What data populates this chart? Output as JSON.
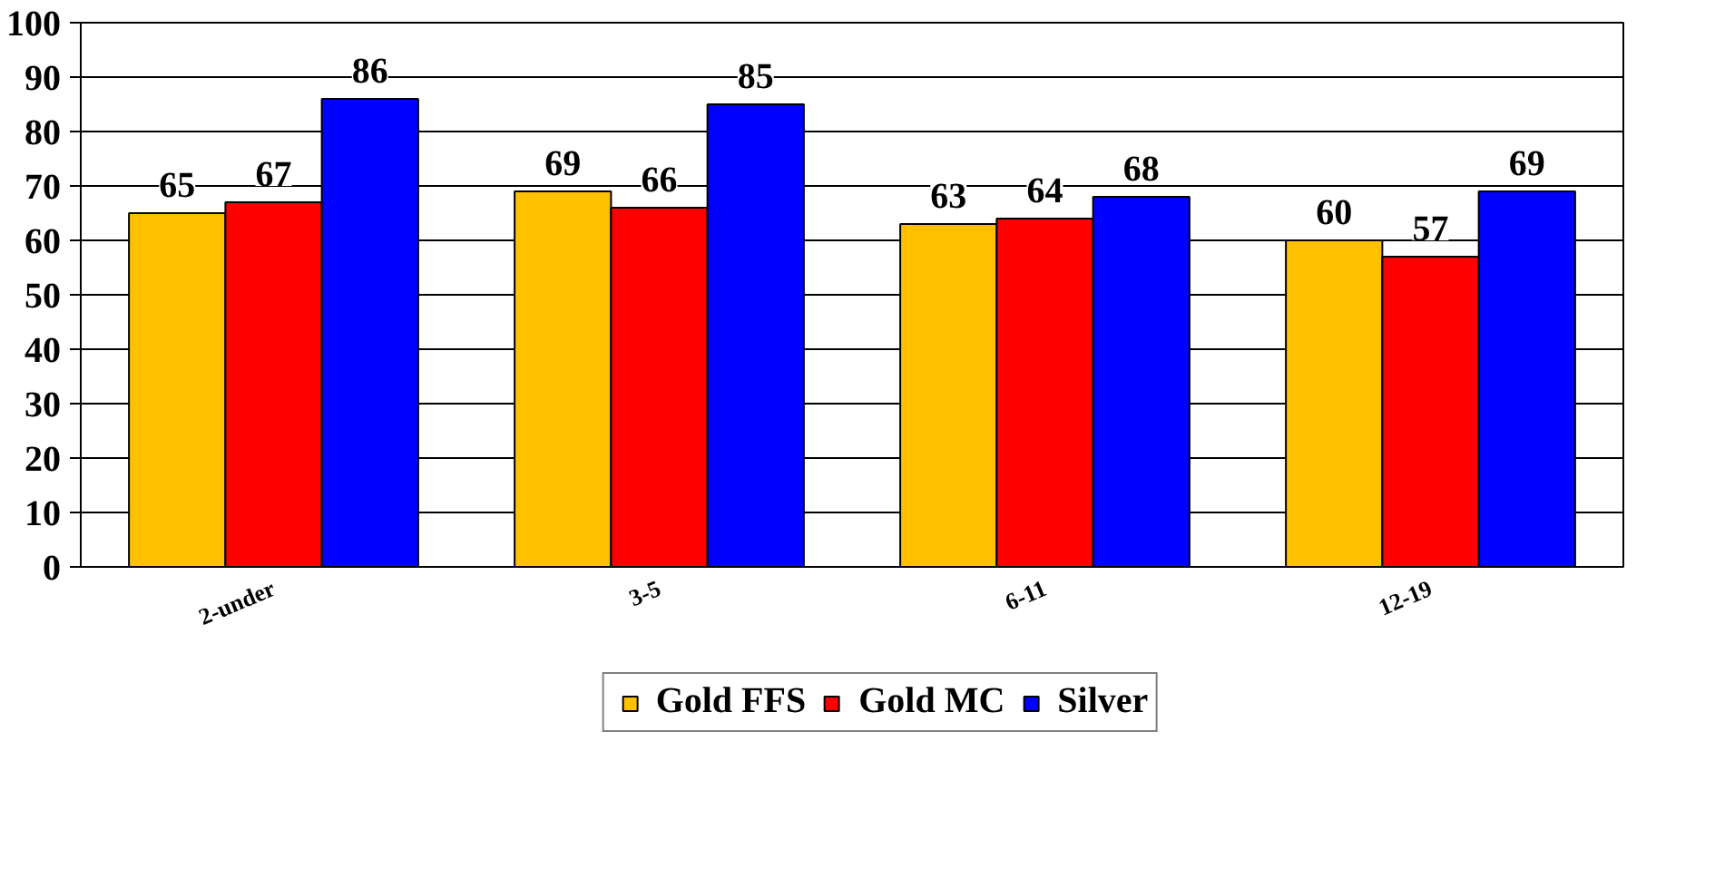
{
  "chart_data": {
    "type": "bar",
    "categories": [
      "2-under",
      "3-5",
      "6-11",
      "12-19"
    ],
    "series": [
      {
        "name": "Gold FFS",
        "color": "#ffc000",
        "values": [
          65,
          69,
          63,
          60
        ]
      },
      {
        "name": "Gold MC",
        "color": "#ff0000",
        "values": [
          67,
          66,
          64,
          57
        ]
      },
      {
        "name": "Silver",
        "color": "#0000ff",
        "values": [
          86,
          85,
          68,
          69
        ]
      }
    ],
    "ylim": [
      0,
      100
    ],
    "yticks": [
      0,
      10,
      20,
      30,
      40,
      50,
      60,
      70,
      80,
      90,
      100
    ],
    "grid": "y",
    "legend": "bottom",
    "data_labels": true
  }
}
